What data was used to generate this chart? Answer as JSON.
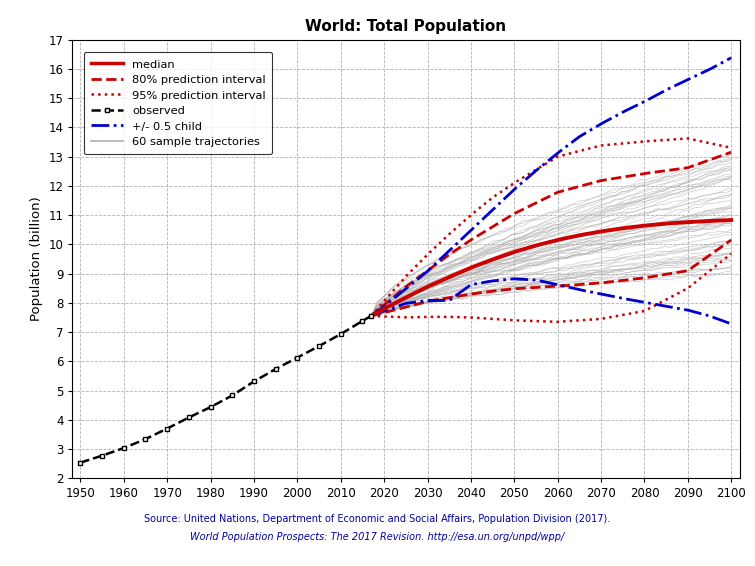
{
  "title": "World: Total Population",
  "ylabel": "Population (billion)",
  "source_line1": "Source: United Nations, Department of Economic and Social Affairs, Population Division (2017).",
  "source_line2": "World Population Prospects: The 2017 Revision. http://esa.un.org/unpd/wpp/",
  "xlim": [
    1948,
    2102
  ],
  "ylim": [
    2,
    17
  ],
  "xticks": [
    1950,
    1960,
    1970,
    1980,
    1990,
    2000,
    2010,
    2020,
    2030,
    2040,
    2050,
    2060,
    2070,
    2080,
    2090,
    2100
  ],
  "yticks": [
    2,
    3,
    4,
    5,
    6,
    7,
    8,
    9,
    10,
    11,
    12,
    13,
    14,
    15,
    16,
    17
  ],
  "bg_color": "#ffffff",
  "plot_bg_color": "#ffffff",
  "grid_color": "#aaaaaa",
  "observed_years": [
    1950,
    1955,
    1960,
    1965,
    1970,
    1975,
    1980,
    1985,
    1990,
    1995,
    2000,
    2005,
    2010,
    2015,
    2017
  ],
  "observed_pop": [
    2.536,
    2.773,
    3.034,
    3.34,
    3.7,
    4.079,
    4.434,
    4.831,
    5.31,
    5.735,
    6.127,
    6.52,
    6.93,
    7.38,
    7.55
  ],
  "median_years": [
    2017,
    2020,
    2025,
    2030,
    2035,
    2040,
    2045,
    2050,
    2055,
    2060,
    2065,
    2070,
    2075,
    2080,
    2085,
    2090,
    2095,
    2100
  ],
  "median_pop": [
    7.55,
    7.8,
    8.18,
    8.55,
    8.88,
    9.2,
    9.48,
    9.74,
    9.96,
    10.15,
    10.31,
    10.44,
    10.55,
    10.64,
    10.71,
    10.76,
    10.8,
    10.83
  ],
  "pi80_upper_years": [
    2017,
    2025,
    2030,
    2035,
    2040,
    2045,
    2050,
    2060,
    2070,
    2080,
    2090,
    2100
  ],
  "pi80_upper_pop": [
    7.55,
    8.55,
    9.1,
    9.65,
    10.15,
    10.6,
    11.05,
    11.78,
    12.18,
    12.42,
    12.62,
    13.15
  ],
  "pi80_lower_years": [
    2017,
    2025,
    2030,
    2035,
    2040,
    2045,
    2050,
    2060,
    2070,
    2080,
    2090,
    2100
  ],
  "pi80_lower_pop": [
    7.55,
    7.85,
    8.05,
    8.18,
    8.3,
    8.4,
    8.48,
    8.57,
    8.68,
    8.85,
    9.1,
    10.15
  ],
  "pi95_upper_years": [
    2017,
    2025,
    2030,
    2035,
    2040,
    2045,
    2050,
    2060,
    2070,
    2080,
    2090,
    2100
  ],
  "pi95_upper_pop": [
    7.55,
    8.9,
    9.65,
    10.35,
    11.0,
    11.6,
    12.1,
    13.0,
    13.38,
    13.52,
    13.62,
    13.3
  ],
  "pi95_lower_years": [
    2017,
    2025,
    2030,
    2035,
    2040,
    2045,
    2050,
    2060,
    2070,
    2080,
    2090,
    2100
  ],
  "pi95_lower_pop": [
    7.55,
    7.5,
    7.52,
    7.52,
    7.5,
    7.45,
    7.4,
    7.35,
    7.45,
    7.72,
    8.5,
    9.68
  ],
  "child05_upper_years": [
    2017,
    2020,
    2025,
    2030,
    2035,
    2040,
    2045,
    2050,
    2055,
    2060,
    2065,
    2070,
    2075,
    2080,
    2085,
    2090,
    2095,
    2100
  ],
  "child05_upper_pop": [
    7.55,
    7.88,
    8.48,
    9.08,
    9.78,
    10.48,
    11.18,
    11.88,
    12.52,
    13.12,
    13.68,
    14.12,
    14.52,
    14.88,
    15.28,
    15.63,
    15.98,
    16.38
  ],
  "child05_lower_years": [
    2017,
    2020,
    2025,
    2030,
    2035,
    2040,
    2045,
    2050,
    2055,
    2060,
    2065,
    2070,
    2075,
    2080,
    2085,
    2090,
    2095,
    2100
  ],
  "child05_lower_pop": [
    7.55,
    7.72,
    7.98,
    8.08,
    8.08,
    8.62,
    8.75,
    8.82,
    8.78,
    8.62,
    8.45,
    8.3,
    8.15,
    8.02,
    7.88,
    7.75,
    7.55,
    7.28
  ],
  "colors": {
    "median": "#cc0000",
    "pi80": "#cc0000",
    "pi95": "#cc0000",
    "observed": "#000000",
    "child05": "#0000cc",
    "trajectories": "#b0b0b0",
    "grid": "#aaaaaa"
  }
}
